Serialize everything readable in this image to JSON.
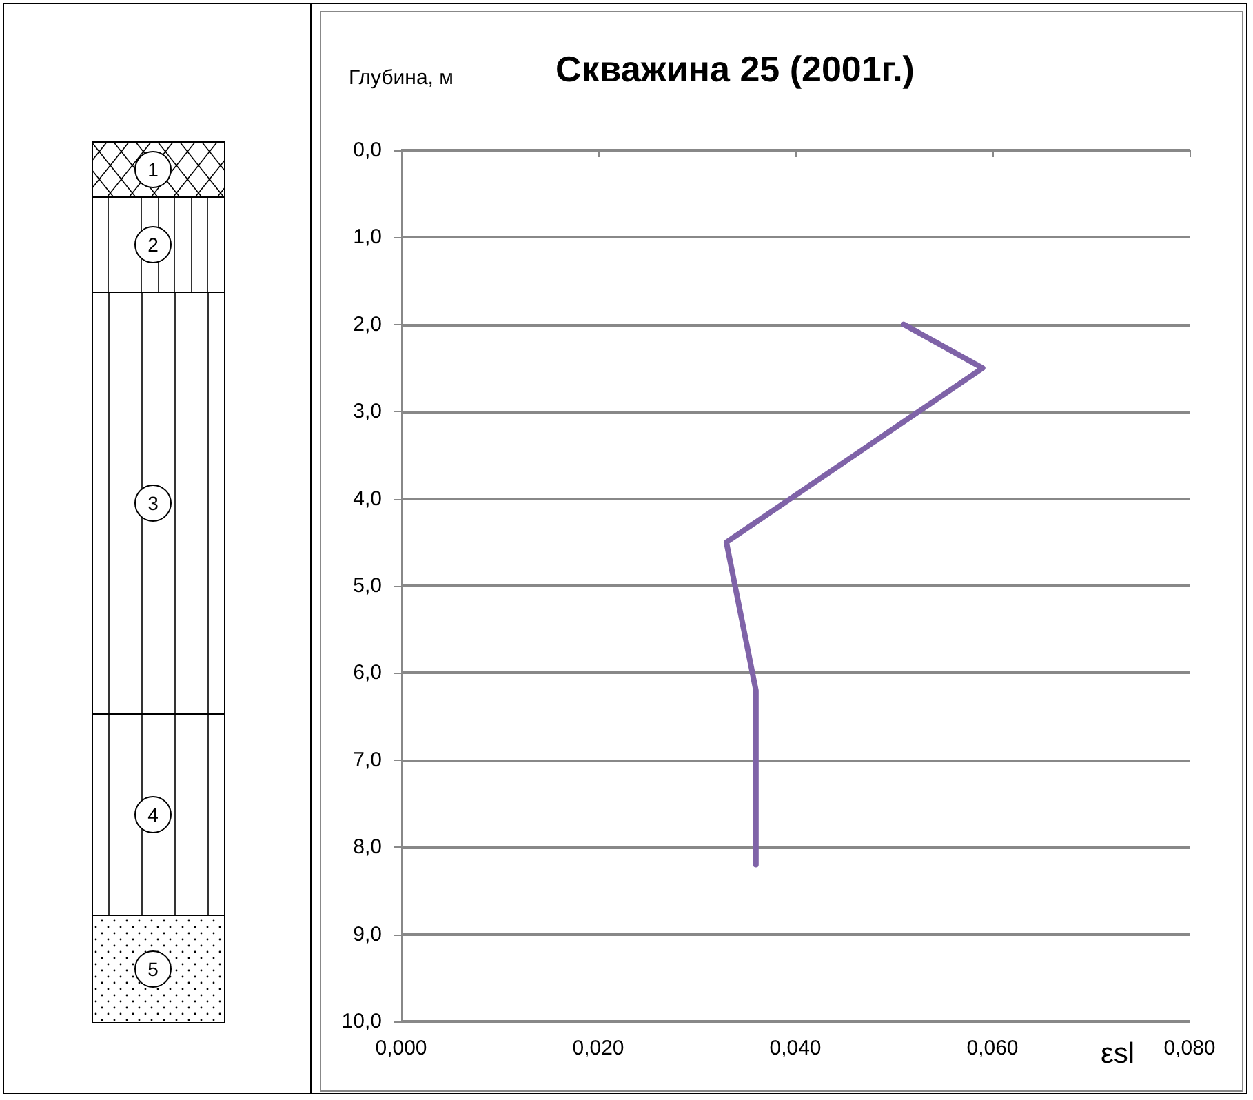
{
  "chart_data": {
    "type": "line",
    "title": "Скважина 25 (2001г.)",
    "xlabel": "εsl",
    "ylabel": "Глубина, м",
    "annotations": [
      "1",
      "2",
      "3",
      "4",
      "5"
    ],
    "series": [
      {
        "color": "#7f63a8",
        "x": [
          0.051,
          0.059,
          0.033,
          0.036,
          0.036
        ],
        "values": [
          2.0,
          2.5,
          4.5,
          6.2,
          8.2
        ]
      }
    ],
    "xlim": [
      0,
      0.08
    ],
    "xticks": [
      {
        "value": 0,
        "label": "0,000"
      },
      {
        "value": 0.02,
        "label": "0,020"
      },
      {
        "value": 0.04,
        "label": "0,040"
      },
      {
        "value": 0.06,
        "label": "0,060"
      },
      {
        "value": 0.08,
        "label": "0,080"
      }
    ],
    "ylim": [
      10,
      0
    ],
    "yticks": [
      {
        "value": 0,
        "label": "0,0"
      },
      {
        "value": 1,
        "label": "1,0"
      },
      {
        "value": 2,
        "label": "2,0"
      },
      {
        "value": 3,
        "label": "3,0"
      },
      {
        "value": 4,
        "label": "4,0"
      },
      {
        "value": 5,
        "label": "5,0"
      },
      {
        "value": 6,
        "label": "6,0"
      },
      {
        "value": 7,
        "label": "7,0"
      },
      {
        "value": 8,
        "label": "8,0"
      },
      {
        "value": 9,
        "label": "9,0"
      },
      {
        "value": 10,
        "label": "10,0"
      }
    ],
    "grid": "y",
    "marker": "none",
    "line_style": "solid"
  }
}
